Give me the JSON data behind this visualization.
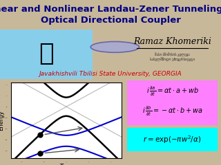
{
  "title": "Linear and Nonlinear Landau-Zener Tunneling in\nOptical Directional Coupler",
  "title_bg": "#00FFFF",
  "title_color": "#000080",
  "title_fontsize": 9.5,
  "bg_color": "#C8B89A",
  "author": "Ramaz Khomeriki",
  "affiliation": "Javakhishvili Tbilisi State University, GEORGIA",
  "affiliation_color": "#CC0000",
  "eq_box1_color": "#FF80FF",
  "eq_box2_color": "#00FFFF",
  "plot_bg": "#FFFFFF",
  "upper_curve_color": "#000000",
  "lower_curve_color": "#0000CC",
  "dot_color": "#000000",
  "arrow_color": "#555555",
  "gray_line_color": "#999999",
  "building_bg": "#87CEEB",
  "logo_color": "#AAAACC",
  "logo_edge_color": "#6666AA"
}
